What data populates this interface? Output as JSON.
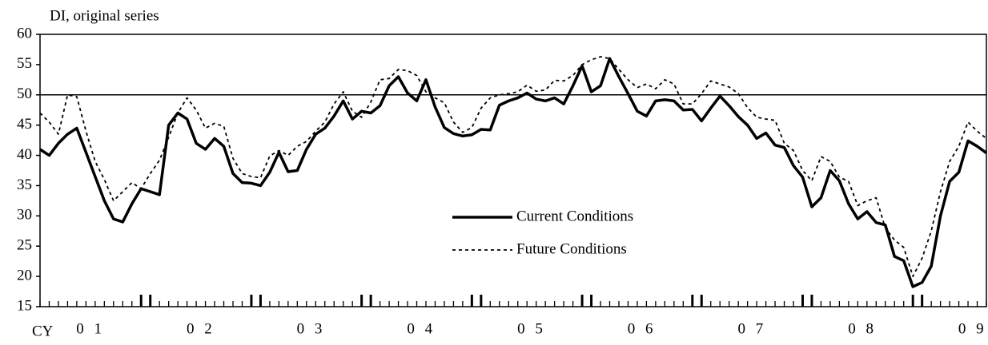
{
  "chart_data": {
    "type": "line",
    "title": "DI, original series",
    "x_label": "CY",
    "ylim": [
      15,
      60
    ],
    "yticks": [
      15,
      20,
      25,
      30,
      35,
      40,
      45,
      50,
      55,
      60
    ],
    "xlim": [
      0,
      103
    ],
    "xticks": [
      {
        "value": 5.5,
        "label": "0 1"
      },
      {
        "value": 17.5,
        "label": "0 2"
      },
      {
        "value": 29.5,
        "label": "0 3"
      },
      {
        "value": 41.5,
        "label": "0 4"
      },
      {
        "value": 53.5,
        "label": "0 5"
      },
      {
        "value": 65.5,
        "label": "0 6"
      },
      {
        "value": 77.5,
        "label": "0 7"
      },
      {
        "value": 89.5,
        "label": "0 8"
      },
      {
        "value": 101.5,
        "label": "0 9"
      }
    ],
    "reference_line": 50,
    "legend": "center",
    "series": [
      {
        "name": "Current Conditions",
        "color": "#000000",
        "style": "solid",
        "values": [
          41,
          40,
          42,
          43.5,
          44.5,
          40.5,
          36.5,
          32.5,
          29.5,
          29,
          32,
          34.5,
          34,
          33.5,
          45,
          47,
          46,
          42,
          41,
          42.8,
          41.5,
          37,
          35.5,
          35.4,
          35,
          37.2,
          40.5,
          37.3,
          37.5,
          41,
          43.5,
          44.5,
          46.5,
          49,
          46,
          47.3,
          47,
          48.2,
          51.5,
          53,
          50.3,
          49,
          52.5,
          48,
          44.6,
          43.6,
          43.2,
          43.4,
          44.3,
          44.2,
          48.3,
          49,
          49.5,
          50.3,
          49.3,
          49,
          49.5,
          48.5,
          51.5,
          54.8,
          50.5,
          51.5,
          56,
          53,
          50.2,
          47.3,
          46.5,
          49,
          49.2,
          49,
          47.5,
          47.6,
          45.7,
          47.8,
          49.8,
          48.2,
          46.4,
          45,
          42.8,
          43.7,
          41.7,
          41.3,
          38.3,
          36.4,
          31.5,
          33,
          37.5,
          35.8,
          32,
          29.5,
          30.7,
          28.9,
          28.5,
          23.3,
          22.6,
          18.3,
          19,
          21.7,
          30,
          35.7,
          37.2,
          42.4,
          41.5,
          40.4
        ]
      },
      {
        "name": "Future Conditions",
        "color": "#000000",
        "style": "dotted",
        "values": [
          47,
          45.5,
          43.5,
          50,
          49.7,
          44,
          39,
          36,
          32.5,
          34,
          35.5,
          34.5,
          37,
          39.2,
          43,
          47,
          49.5,
          47.5,
          44.5,
          45.3,
          44.8,
          39.5,
          37,
          36.5,
          36.3,
          39.9,
          40.8,
          40,
          41.5,
          42.3,
          44,
          45.5,
          48.5,
          50.5,
          47.3,
          46.3,
          48.8,
          52.5,
          52.7,
          54.2,
          54,
          53.2,
          50.5,
          49.5,
          48.7,
          45.5,
          43.8,
          44.6,
          47.8,
          49.5,
          50,
          50.2,
          50.5,
          51.6,
          50.6,
          50.8,
          52.4,
          52.3,
          53.2,
          55,
          55.8,
          56.3,
          56,
          54.2,
          52.5,
          51.2,
          51.8,
          51,
          52.5,
          51.8,
          48.5,
          48.5,
          50.2,
          52.3,
          51.8,
          51.3,
          50.2,
          47.9,
          46.3,
          46,
          45.8,
          42,
          40.8,
          37.5,
          35.8,
          39.8,
          39,
          36.4,
          35.7,
          31.7,
          32.5,
          33,
          28,
          26,
          24.8,
          20,
          23,
          27.5,
          34,
          39,
          41.5,
          45.5,
          44,
          42.8
        ]
      }
    ]
  }
}
